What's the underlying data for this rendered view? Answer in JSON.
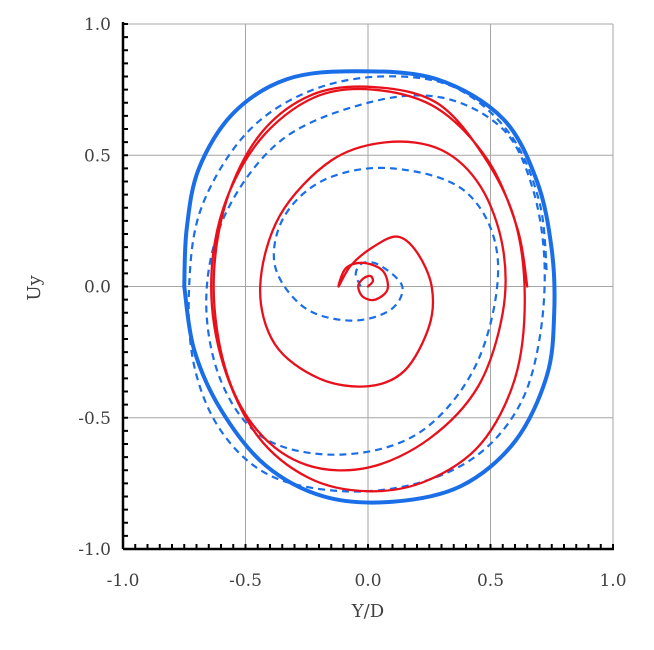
{
  "chart_data": {
    "type": "line",
    "title": "",
    "xlabel": "Y/D",
    "ylabel": "Uy",
    "xlim": [
      -1.0,
      1.0
    ],
    "ylim": [
      -1.0,
      1.0
    ],
    "xticks": [
      "-1.0",
      "-0.5",
      "0.0",
      "0.5",
      "1.0"
    ],
    "yticks": [
      "-1.0",
      "-0.5",
      "0.0",
      "0.5",
      "1.0"
    ],
    "grid": true,
    "legend": "none",
    "series": [
      {
        "style": "solid",
        "color": "#1a6ee8",
        "x": [
          -0.75,
          -0.74,
          -0.69,
          -0.55,
          -0.33,
          -0.05,
          0.28,
          0.55,
          0.69,
          0.75,
          0.76,
          0.73,
          0.6,
          0.38,
          0.1,
          -0.18,
          -0.42,
          -0.6,
          -0.71,
          -0.75
        ],
        "y": [
          0.0,
          0.22,
          0.45,
          0.66,
          0.79,
          0.82,
          0.79,
          0.64,
          0.4,
          0.14,
          -0.1,
          -0.34,
          -0.59,
          -0.76,
          -0.82,
          -0.8,
          -0.68,
          -0.47,
          -0.24,
          0.0
        ]
      },
      {
        "style": "dashed",
        "color": "#1a6ee8",
        "x": [
          -0.03,
          -0.05,
          -0.02,
          0.05,
          0.14,
          0.09,
          -0.07,
          -0.26,
          -0.38,
          -0.34,
          -0.17,
          0.1,
          0.4,
          0.53,
          0.45,
          0.22,
          -0.1,
          -0.42,
          -0.6,
          -0.66,
          -0.58,
          -0.35,
          0.0,
          0.3,
          0.55,
          0.67,
          0.72,
          0.7,
          0.62,
          0.45,
          0.2,
          -0.1,
          -0.4,
          -0.6,
          -0.71,
          -0.73,
          -0.68,
          -0.5,
          -0.25,
          0.05,
          0.35,
          0.58,
          0.7,
          0.73
        ],
        "y": [
          0.0,
          0.05,
          0.09,
          0.08,
          0.0,
          -0.09,
          -0.13,
          -0.08,
          0.08,
          0.27,
          0.41,
          0.45,
          0.36,
          0.1,
          -0.28,
          -0.55,
          -0.64,
          -0.58,
          -0.36,
          -0.04,
          0.28,
          0.56,
          0.7,
          0.72,
          0.6,
          0.38,
          0.1,
          -0.2,
          -0.45,
          -0.64,
          -0.75,
          -0.78,
          -0.72,
          -0.55,
          -0.3,
          0.0,
          0.3,
          0.58,
          0.74,
          0.8,
          0.76,
          0.58,
          0.32,
          0.05
        ]
      },
      {
        "style": "solid",
        "color": "#e8111b",
        "x": [
          0.0,
          0.02,
          0.01,
          -0.02,
          -0.04,
          -0.02,
          0.03,
          0.08,
          0.06,
          -0.02,
          -0.09,
          -0.12,
          -0.07,
          0.02,
          0.12,
          0.2,
          0.26,
          0.25,
          0.15,
          0.0,
          -0.2,
          -0.38,
          -0.44,
          -0.36,
          -0.15,
          0.08,
          0.3,
          0.46,
          0.55,
          0.55,
          0.45,
          0.25,
          0.0,
          -0.25,
          -0.45,
          -0.58,
          -0.63,
          -0.58,
          -0.44,
          -0.23,
          0.02,
          0.28,
          0.47,
          0.6,
          0.64,
          0.6,
          0.46,
          0.24,
          0.0,
          -0.24,
          -0.45,
          -0.59,
          -0.64,
          -0.59,
          -0.44,
          -0.22,
          0.02,
          0.28,
          0.49,
          0.61,
          0.65
        ],
        "y": [
          0.0,
          0.02,
          0.04,
          0.03,
          0.0,
          -0.04,
          -0.05,
          -0.01,
          0.06,
          0.09,
          0.07,
          0.0,
          0.08,
          0.15,
          0.19,
          0.13,
          0.0,
          -0.15,
          -0.32,
          -0.38,
          -0.35,
          -0.22,
          0.0,
          0.27,
          0.48,
          0.55,
          0.52,
          0.38,
          0.15,
          -0.1,
          -0.38,
          -0.58,
          -0.69,
          -0.68,
          -0.55,
          -0.32,
          0.0,
          0.32,
          0.58,
          0.73,
          0.76,
          0.7,
          0.5,
          0.25,
          -0.05,
          -0.35,
          -0.6,
          -0.74,
          -0.78,
          -0.73,
          -0.57,
          -0.3,
          0.0,
          0.3,
          0.56,
          0.72,
          0.75,
          0.68,
          0.48,
          0.22,
          0.0
        ]
      }
    ]
  }
}
